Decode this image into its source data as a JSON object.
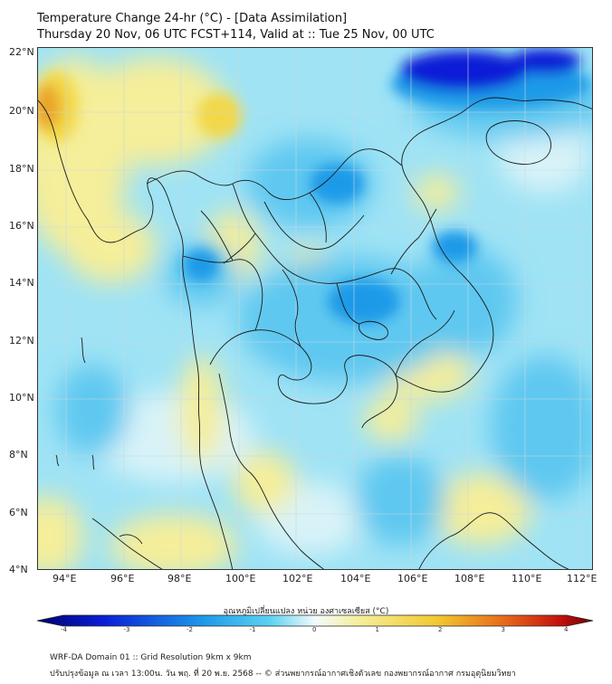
{
  "title": {
    "line1": "Temperature Change 24-hr (°C) - [Data Assimilation]",
    "line2": "Thursday 20 Nov, 06 UTC FCST+114, Valid at :: Tue 25 Nov, 00 UTC"
  },
  "map": {
    "lat_labels": [
      "22°N",
      "20°N",
      "18°N",
      "16°N",
      "14°N",
      "12°N",
      "10°N",
      "8°N",
      "6°N",
      "4°N"
    ],
    "lon_labels": [
      "94°E",
      "96°E",
      "98°E",
      "100°E",
      "102°E",
      "104°E",
      "106°E",
      "108°E",
      "110°E",
      "112°E"
    ],
    "colors": {
      "background": "#9fe3f5",
      "cold_strong": "#0a1fd6",
      "cold": "#1e9ae8",
      "cool": "#5fc8f0",
      "neutral": "#d8f3f8",
      "warm": "#f5ee9a",
      "warmer": "#f2d84a",
      "hot": "#eaa52a",
      "coast": "#1a1a1a",
      "grid": "#c8d8e0"
    }
  },
  "colorbar": {
    "title": "อุณหภูมิเปลี่ยนแปลง หน่วย องศาเซลเซียส (°C)",
    "ticks": [
      "-4",
      "-3",
      "-2",
      "-1",
      "0",
      "1",
      "2",
      "3",
      "4"
    ],
    "range": [
      -4,
      4
    ]
  },
  "footer": {
    "line1": "WRF-DA Domain 01 :: Grid Resolution 9km x 9km",
    "line2": "ปรับปรุงข้อมูล ณ เวลา 13:00น. วัน พฤ. ที่ 20 พ.ย. 2568 -- © ส่วนพยากรณ์อากาศเชิงตัวเลข กองพยากรณ์อากาศ กรมอุตุนิยมวิทยา"
  }
}
